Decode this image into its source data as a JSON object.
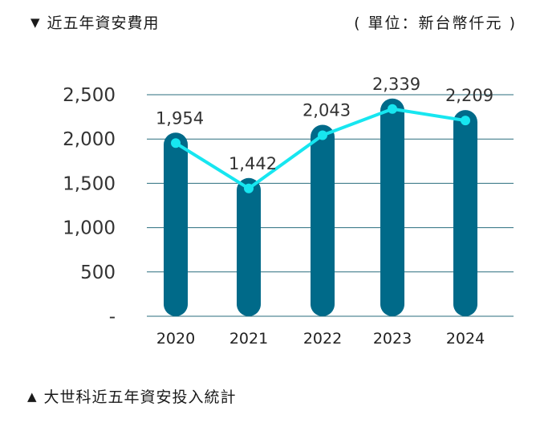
{
  "header": {
    "marker": "▼",
    "title": "近五年資安費用",
    "unit": "( 單位：新台幣仟元 )"
  },
  "caption": {
    "marker": "▲",
    "text": "大世科近五年資安投入統計"
  },
  "colors": {
    "bar": "#006a89",
    "line": "#17e6f0",
    "grid": "#2a6e7e"
  },
  "chart_data": {
    "type": "bar",
    "categories": [
      "2020",
      "2021",
      "2022",
      "2023",
      "2024"
    ],
    "series": [
      {
        "values": [
          1954,
          1442,
          2043,
          2339,
          2209
        ]
      }
    ],
    "overlay_line": [
      1954,
      1442,
      2043,
      2339,
      2209
    ],
    "data_labels": [
      "1,954",
      "1,442",
      "2,043",
      "2,339",
      "2,209"
    ],
    "yticks": [
      {
        "value": 0,
        "label": "-"
      },
      {
        "value": 500,
        "label": "500"
      },
      {
        "value": 1000,
        "label": "1,000"
      },
      {
        "value": 1500,
        "label": "1,500"
      },
      {
        "value": 2000,
        "label": "2,000"
      },
      {
        "value": 2500,
        "label": "2,500"
      }
    ],
    "ylim": [
      0,
      2500
    ],
    "grid": true,
    "legend": "none",
    "title": "",
    "xlabel": "",
    "ylabel": ""
  }
}
